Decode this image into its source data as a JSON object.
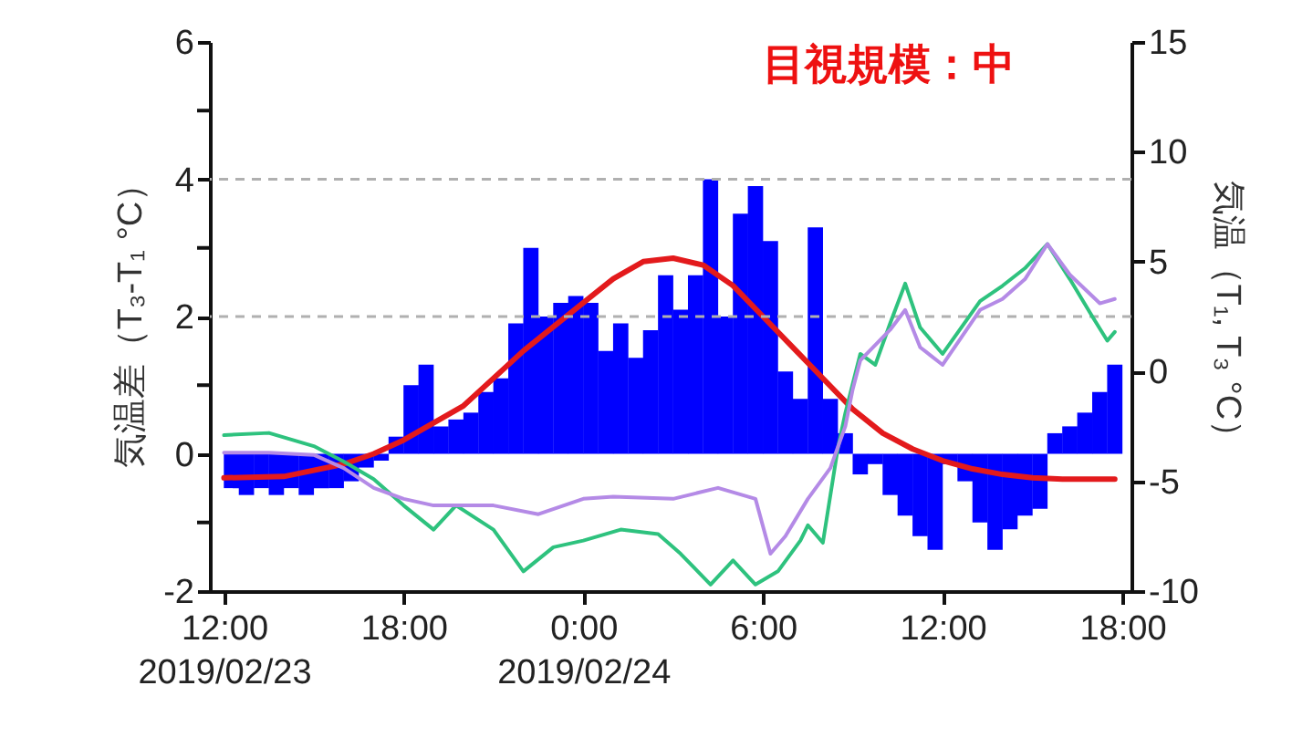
{
  "chart_data": {
    "type": "bar",
    "ylabel": "気温差（T₃-T₁ °C）",
    "y2label": "気温（T₁, T₃ °C）",
    "annotations": [
      "目視規模：中"
    ],
    "xlim": [
      "2019-02-23T11:50",
      "2019-02-24T18:00"
    ],
    "xticks": [
      {
        "value": "2019-02-23T12:00",
        "label": "12:00\n2019/02/23"
      },
      {
        "value": "2019-02-23T18:00",
        "label": "18:00"
      },
      {
        "value": "2019-02-24T00:00",
        "label": "0:00\n2019/02/24"
      },
      {
        "value": "2019-02-24T06:00",
        "label": "6:00"
      },
      {
        "value": "2019-02-24T12:00",
        "label": "12:00"
      },
      {
        "value": "2019-02-24T18:00",
        "label": "18:00"
      }
    ],
    "ylim": [
      -2,
      6
    ],
    "yticks": [
      -2,
      {
        "value": -1,
        "label": null
      },
      0,
      {
        "value": 1,
        "label": null
      },
      2,
      {
        "value": 3,
        "label": null
      },
      4,
      {
        "value": 5,
        "label": null
      },
      6
    ],
    "y2lim": [
      -10,
      15
    ],
    "y2ticks": [
      -10,
      -5,
      0,
      5,
      10,
      15
    ],
    "ref_lines": [
      {
        "axis": "y",
        "value": 2,
        "color": "#b0b0b0",
        "line_style": "dashed"
      },
      {
        "axis": "y",
        "value": 4,
        "color": "#b0b0b0",
        "line_style": "dashed"
      }
    ],
    "series": [
      {
        "color": "#0000ff",
        "x": [
          "2019-02-23T12:15",
          "2019-02-23T12:45",
          "2019-02-23T13:15",
          "2019-02-23T13:45",
          "2019-02-23T14:15",
          "2019-02-23T14:45",
          "2019-02-23T15:15",
          "2019-02-23T15:45",
          "2019-02-23T16:15",
          "2019-02-23T16:45",
          "2019-02-23T17:15",
          "2019-02-23T17:45",
          "2019-02-23T18:15",
          "2019-02-23T18:45",
          "2019-02-23T19:15",
          "2019-02-23T19:45",
          "2019-02-23T20:15",
          "2019-02-23T20:45",
          "2019-02-23T21:15",
          "2019-02-23T21:45",
          "2019-02-23T22:15",
          "2019-02-23T22:45",
          "2019-02-23T23:15",
          "2019-02-23T23:45",
          "2019-02-24T00:15",
          "2019-02-24T00:45",
          "2019-02-24T01:15",
          "2019-02-24T01:45",
          "2019-02-24T02:15",
          "2019-02-24T02:45",
          "2019-02-24T03:15",
          "2019-02-24T03:45",
          "2019-02-24T04:15",
          "2019-02-24T04:45",
          "2019-02-24T05:15",
          "2019-02-24T05:45",
          "2019-02-24T06:15",
          "2019-02-24T06:45",
          "2019-02-24T07:15",
          "2019-02-24T07:45",
          "2019-02-24T08:15",
          "2019-02-24T08:45",
          "2019-02-24T09:15",
          "2019-02-24T09:45",
          "2019-02-24T10:15",
          "2019-02-24T10:45",
          "2019-02-24T11:15",
          "2019-02-24T11:45",
          "2019-02-24T12:15",
          "2019-02-24T12:45",
          "2019-02-24T13:15",
          "2019-02-24T13:45",
          "2019-02-24T14:15",
          "2019-02-24T14:45",
          "2019-02-24T15:15",
          "2019-02-24T15:45",
          "2019-02-24T16:15",
          "2019-02-24T16:45",
          "2019-02-24T17:15",
          "2019-02-24T17:45"
        ],
        "values": [
          -0.5,
          -0.6,
          -0.5,
          -0.6,
          -0.5,
          -0.6,
          -0.5,
          -0.5,
          -0.4,
          -0.2,
          -0.1,
          0.25,
          1.0,
          1.3,
          0.4,
          0.5,
          0.6,
          0.9,
          1.1,
          1.9,
          3.0,
          2.0,
          2.2,
          2.3,
          2.2,
          1.5,
          1.9,
          1.4,
          1.8,
          2.6,
          2.1,
          2.6,
          4.0,
          2.0,
          3.5,
          3.9,
          3.1,
          1.2,
          0.8,
          3.3,
          0.8,
          0.3,
          -0.3,
          -0.15,
          -0.6,
          -0.9,
          -1.2,
          -1.4,
          -0.15,
          -0.4,
          -1.0,
          -1.4,
          -1.1,
          -0.9,
          -0.8,
          0.3,
          0.4,
          0.6,
          0.9,
          1.3
        ]
      },
      {
        "type": "line",
        "color": "#e31a1c",
        "x": [
          "2019-02-23T12:00",
          "2019-02-23T14:00",
          "2019-02-23T16:00",
          "2019-02-23T17:00",
          "2019-02-23T18:00",
          "2019-02-23T20:00",
          "2019-02-23T22:00",
          "2019-02-24T00:00",
          "2019-02-24T01:00",
          "2019-02-24T02:00",
          "2019-02-24T03:00",
          "2019-02-24T04:00",
          "2019-02-24T05:00",
          "2019-02-24T06:00",
          "2019-02-24T07:00",
          "2019-02-24T08:00",
          "2019-02-24T09:00",
          "2019-02-24T10:00",
          "2019-02-24T11:00",
          "2019-02-24T12:00",
          "2019-02-24T13:00",
          "2019-02-24T14:00",
          "2019-02-24T15:00",
          "2019-02-24T16:00",
          "2019-02-24T17:45"
        ],
        "values": [
          -0.35,
          -0.33,
          -0.15,
          0,
          0.2,
          0.7,
          1.5,
          2.2,
          2.55,
          2.8,
          2.85,
          2.75,
          2.45,
          2.0,
          1.55,
          1.1,
          0.65,
          0.3,
          0.07,
          -0.1,
          -0.22,
          -0.3,
          -0.35,
          -0.37,
          -0.37
        ]
      },
      {
        "type": "line",
        "axis": "y2",
        "color": "#2ec27e",
        "x": [
          "2019-02-23T12:00",
          "2019-02-23T13:30",
          "2019-02-23T15:00",
          "2019-02-23T16:00",
          "2019-02-23T17:00",
          "2019-02-23T18:00",
          "2019-02-23T19:00",
          "2019-02-23T19:45",
          "2019-02-23T21:00",
          "2019-02-23T22:00",
          "2019-02-23T23:00",
          "2019-02-24T00:00",
          "2019-02-24T01:15",
          "2019-02-24T02:30",
          "2019-02-24T03:15",
          "2019-02-24T04:15",
          "2019-02-24T05:00",
          "2019-02-24T05:45",
          "2019-02-24T06:30",
          "2019-02-24T07:15",
          "2019-02-24T07:30",
          "2019-02-24T08:00",
          "2019-02-24T08:30",
          "2019-02-24T08:45",
          "2019-02-24T09:15",
          "2019-02-24T09:45",
          "2019-02-24T10:15",
          "2019-02-24T10:45",
          "2019-02-24T11:15",
          "2019-02-24T12:00",
          "2019-02-24T13:15",
          "2019-02-24T14:00",
          "2019-02-24T14:45",
          "2019-02-24T15:30",
          "2019-02-24T16:15",
          "2019-02-24T17:00",
          "2019-02-24T17:30",
          "2019-02-24T17:45"
        ],
        "values": [
          -2.9,
          -2.8,
          -3.4,
          -4.1,
          -4.9,
          -6.1,
          -7.2,
          -6.1,
          -7.2,
          -9.1,
          -8.0,
          -7.7,
          -7.2,
          -7.4,
          -8.3,
          -9.7,
          -8.6,
          -9.7,
          -9.1,
          -7.7,
          -7.0,
          -7.8,
          -3.5,
          -1.9,
          0.8,
          0.3,
          2.2,
          4.0,
          2.0,
          0.8,
          3.2,
          3.9,
          4.7,
          5.8,
          4.2,
          2.5,
          1.4,
          1.8
        ]
      },
      {
        "type": "line",
        "axis": "y2",
        "color": "#b48ae6",
        "x": [
          "2019-02-23T12:00",
          "2019-02-23T13:30",
          "2019-02-23T15:00",
          "2019-02-23T16:00",
          "2019-02-23T17:00",
          "2019-02-23T18:00",
          "2019-02-23T19:00",
          "2019-02-23T21:00",
          "2019-02-23T22:30",
          "2019-02-24T00:00",
          "2019-02-24T01:00",
          "2019-02-24T03:00",
          "2019-02-24T04:30",
          "2019-02-24T05:45",
          "2019-02-24T06:15",
          "2019-02-24T06:45",
          "2019-02-24T07:30",
          "2019-02-24T08:15",
          "2019-02-24T08:45",
          "2019-02-24T09:00",
          "2019-02-24T09:15",
          "2019-02-24T10:15",
          "2019-02-24T10:45",
          "2019-02-24T11:15",
          "2019-02-24T12:00",
          "2019-02-24T13:15",
          "2019-02-24T14:00",
          "2019-02-24T14:45",
          "2019-02-24T15:30",
          "2019-02-24T16:15",
          "2019-02-24T17:15",
          "2019-02-24T17:45"
        ],
        "values": [
          -3.7,
          -3.7,
          -3.8,
          -4.4,
          -5.3,
          -5.8,
          -6.1,
          -6.1,
          -6.5,
          -5.8,
          -5.7,
          -5.8,
          -5.3,
          -5.8,
          -8.3,
          -7.5,
          -5.8,
          -4.4,
          -2.5,
          -0.8,
          0.5,
          1.9,
          2.8,
          1.1,
          0.3,
          2.8,
          3.3,
          4.2,
          5.8,
          4.4,
          3.1,
          3.3
        ]
      }
    ]
  }
}
